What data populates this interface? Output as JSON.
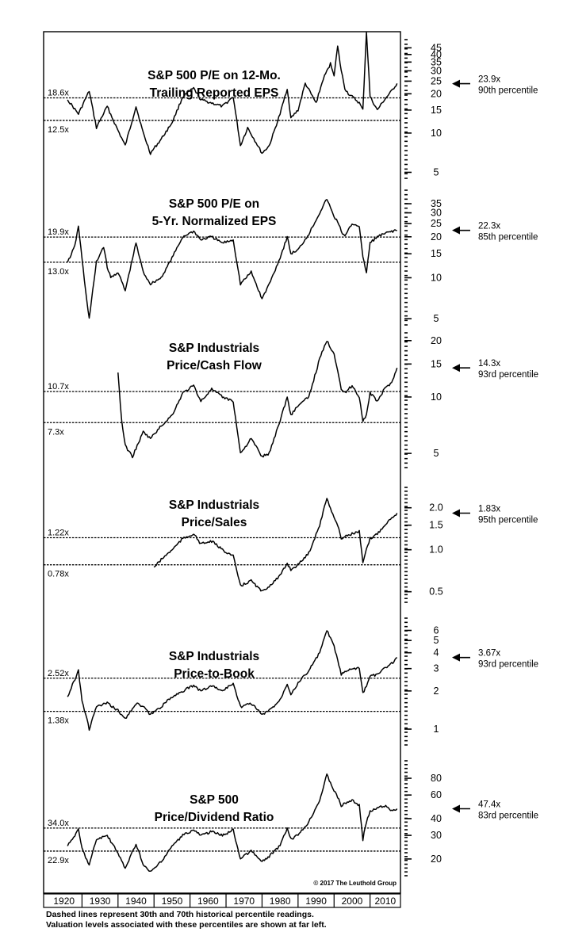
{
  "chart_data": {
    "type": "line",
    "source": "© 2017 The Leuthold Group",
    "decade_labels": [
      "1920",
      "1930",
      "1940",
      "1950",
      "1960",
      "1970",
      "1980",
      "1990",
      "2000",
      "2010"
    ],
    "x_range": [
      1920,
      2018
    ],
    "footnote_lines": [
      "Dashed lines represent 30th and 70th historical percentile readings.",
      "Valuation levels associated with these percentiles are shown at far left."
    ],
    "panels": [
      {
        "title_lines": [
          "S&P 500 P/E on 12-Mo.",
          "Trailing Reported EPS"
        ],
        "y_scale": "log",
        "ylim": [
          4.5,
          52
        ],
        "ticks": [
          5,
          10,
          15,
          20,
          25,
          30,
          35,
          40,
          45
        ],
        "upper_line": {
          "value": 18.6,
          "label": "18.6x"
        },
        "lower_line": {
          "value": 12.5,
          "label": "12.5x"
        },
        "current": {
          "value": 23.9,
          "label": "23.9x",
          "percentile": "90th percentile"
        },
        "x": [
          1926,
          1929,
          1932,
          1934,
          1937,
          1939,
          1942,
          1945,
          1947,
          1949,
          1952,
          1955,
          1958,
          1961,
          1963,
          1966,
          1969,
          1972,
          1974,
          1976,
          1980,
          1982,
          1985,
          1987,
          1988,
          1990,
          1992,
          1995,
          1997,
          1999,
          2000,
          2001,
          2002,
          2003,
          2004,
          2006,
          2007,
          2008,
          2009,
          2010,
          2012,
          2014,
          2016,
          2017.5
        ],
        "values": [
          18,
          14,
          21,
          11,
          16,
          12,
          8,
          16,
          10,
          7,
          9,
          12,
          19,
          22,
          18,
          17,
          16,
          19,
          8,
          11,
          7,
          8,
          14,
          22,
          13,
          15,
          24,
          17,
          26,
          34,
          28,
          46,
          30,
          22,
          20,
          18,
          17,
          15,
          60,
          19,
          15,
          18,
          21,
          24
        ]
      },
      {
        "title_lines": [
          "S&P 500 P/E on",
          "5-Yr. Normalized EPS"
        ],
        "y_scale": "log",
        "ylim": [
          4.5,
          44
        ],
        "ticks": [
          5,
          10,
          15,
          20,
          25,
          30,
          35
        ],
        "upper_line": {
          "value": 19.9,
          "label": "19.9x"
        },
        "lower_line": {
          "value": 13.0,
          "label": "13.0x"
        },
        "current": {
          "value": 22.3,
          "label": "22.3x",
          "percentile": "85th percentile"
        },
        "x": [
          1926,
          1928,
          1929,
          1931,
          1932,
          1934,
          1936,
          1937,
          1938,
          1940,
          1942,
          1945,
          1947,
          1949,
          1952,
          1955,
          1958,
          1961,
          1963,
          1966,
          1969,
          1972,
          1974,
          1977,
          1980,
          1982,
          1985,
          1987,
          1988,
          1990,
          1993,
          1996,
          1998,
          2000,
          2001,
          2002,
          2003,
          2005,
          2007,
          2008,
          2009,
          2010,
          2012,
          2014,
          2016,
          2017.5
        ],
        "values": [
          13,
          17,
          24,
          8,
          5,
          13,
          17,
          12,
          10,
          11,
          8,
          18,
          11,
          9,
          10,
          14,
          20,
          22,
          19,
          20,
          18,
          19,
          9,
          11,
          7,
          9,
          14,
          20,
          15,
          16,
          21,
          30,
          38,
          28,
          26,
          22,
          20,
          25,
          24,
          14,
          11,
          18,
          20,
          21,
          22,
          22.3
        ]
      },
      {
        "title_lines": [
          "S&P Industrials",
          "Price/Cash Flow"
        ],
        "y_scale": "log",
        "ylim": [
          4.2,
          22
        ],
        "ticks": [
          5,
          10,
          15,
          20
        ],
        "upper_line": {
          "value": 10.7,
          "label": "10.7x"
        },
        "lower_line": {
          "value": 7.3,
          "label": "7.3x"
        },
        "current": {
          "value": 14.3,
          "label": "14.3x",
          "percentile": "93rd percentile"
        },
        "x": [
          1940,
          1941,
          1942,
          1944,
          1947,
          1949,
          1952,
          1955,
          1958,
          1961,
          1963,
          1966,
          1969,
          1972,
          1974,
          1977,
          1980,
          1982,
          1985,
          1987,
          1988,
          1990,
          1993,
          1996,
          1998,
          2000,
          2001,
          2002,
          2003,
          2005,
          2007,
          2008,
          2009,
          2010,
          2012,
          2014,
          2016,
          2017.5
        ],
        "values": [
          13.5,
          7.5,
          5.5,
          4.8,
          6.5,
          6,
          7,
          8,
          10.5,
          11.5,
          9.5,
          11,
          10,
          9.5,
          5,
          6,
          4.8,
          5,
          7.5,
          10,
          8,
          9,
          10,
          16,
          20,
          17,
          14,
          11,
          10.5,
          11.5,
          10,
          7.5,
          8,
          10.5,
          9.5,
          11,
          12,
          14.3
        ]
      },
      {
        "title_lines": [
          "S&P Industrials",
          "Price/Sales"
        ],
        "y_scale": "log",
        "ylim": [
          0.42,
          2.8
        ],
        "ticks": [
          0.5,
          1.0,
          1.5,
          2.0
        ],
        "tick_labels": [
          "0.5",
          "1.0",
          "1.5",
          "2.0"
        ],
        "upper_line": {
          "value": 1.22,
          "label": "1.22x"
        },
        "lower_line": {
          "value": 0.78,
          "label": "0.78x"
        },
        "current": {
          "value": 1.83,
          "label": "1.83x",
          "percentile": "95th percentile"
        },
        "x": [
          1950,
          1952,
          1955,
          1958,
          1961,
          1963,
          1966,
          1969,
          1972,
          1974,
          1977,
          1980,
          1982,
          1985,
          1987,
          1988,
          1990,
          1993,
          1996,
          1998,
          2000,
          2001,
          2002,
          2003,
          2005,
          2007,
          2008,
          2009,
          2010,
          2012,
          2014,
          2016,
          2017.5
        ],
        "values": [
          0.75,
          0.85,
          1.0,
          1.2,
          1.3,
          1.1,
          1.15,
          1.0,
          0.9,
          0.55,
          0.6,
          0.5,
          0.55,
          0.65,
          0.8,
          0.72,
          0.78,
          0.95,
          1.5,
          2.35,
          1.7,
          1.5,
          1.2,
          1.25,
          1.3,
          1.35,
          0.8,
          1.0,
          1.2,
          1.3,
          1.5,
          1.7,
          1.83
        ]
      },
      {
        "title_lines": [
          "S&P Industrials",
          "Price-to-Book"
        ],
        "y_scale": "log",
        "ylim": [
          0.75,
          7.5
        ],
        "ticks": [
          1,
          2,
          3,
          4,
          5,
          6
        ],
        "upper_line": {
          "value": 2.52,
          "label": "2.52x"
        },
        "lower_line": {
          "value": 1.38,
          "label": "1.38x"
        },
        "current": {
          "value": 3.67,
          "label": "3.67x",
          "percentile": "93rd percentile"
        },
        "x": [
          1926,
          1929,
          1930,
          1932,
          1934,
          1937,
          1940,
          1942,
          1945,
          1947,
          1949,
          1952,
          1955,
          1958,
          1961,
          1963,
          1966,
          1969,
          1972,
          1974,
          1977,
          1980,
          1982,
          1985,
          1987,
          1988,
          1990,
          1993,
          1996,
          1998,
          2000,
          2001,
          2002,
          2003,
          2005,
          2007,
          2008,
          2009,
          2010,
          2012,
          2014,
          2016,
          2017.5
        ],
        "values": [
          1.8,
          2.9,
          1.7,
          1.0,
          1.5,
          1.6,
          1.4,
          1.2,
          1.6,
          1.5,
          1.3,
          1.5,
          1.8,
          2.0,
          2.2,
          2.0,
          2.2,
          2.0,
          2.3,
          1.5,
          1.6,
          1.3,
          1.4,
          1.7,
          2.3,
          1.9,
          2.3,
          2.9,
          4.0,
          6.0,
          4.5,
          3.5,
          2.7,
          2.8,
          3.0,
          3.0,
          1.9,
          2.2,
          2.6,
          2.7,
          3.0,
          3.3,
          3.67
        ]
      },
      {
        "title_lines": [
          "S&P 500",
          "Price/Dividend Ratio"
        ],
        "y_scale": "log",
        "ylim": [
          15,
          108
        ],
        "ticks": [
          20,
          30,
          40,
          60,
          80
        ],
        "upper_line": {
          "value": 34.0,
          "label": "34.0x"
        },
        "lower_line": {
          "value": 22.9,
          "label": "22.9x"
        },
        "current": {
          "value": 47.4,
          "label": "47.4x",
          "percentile": "83rd percentile"
        },
        "x": [
          1926,
          1929,
          1930,
          1932,
          1934,
          1937,
          1940,
          1942,
          1945,
          1947,
          1949,
          1952,
          1955,
          1958,
          1961,
          1963,
          1966,
          1969,
          1972,
          1974,
          1977,
          1980,
          1982,
          1985,
          1987,
          1988,
          1990,
          1993,
          1996,
          1998,
          2000,
          2001,
          2002,
          2003,
          2005,
          2007,
          2008,
          2009,
          2010,
          2012,
          2014,
          2016,
          2017.5
        ],
        "values": [
          25,
          33,
          24,
          18,
          28,
          30,
          22,
          17,
          26,
          18,
          16,
          19,
          25,
          30,
          33,
          30,
          32,
          30,
          33,
          20,
          23,
          19,
          21,
          25,
          34,
          28,
          30,
          38,
          55,
          85,
          65,
          58,
          50,
          52,
          55,
          50,
          28,
          38,
          45,
          48,
          50,
          46,
          47.4
        ]
      }
    ]
  }
}
